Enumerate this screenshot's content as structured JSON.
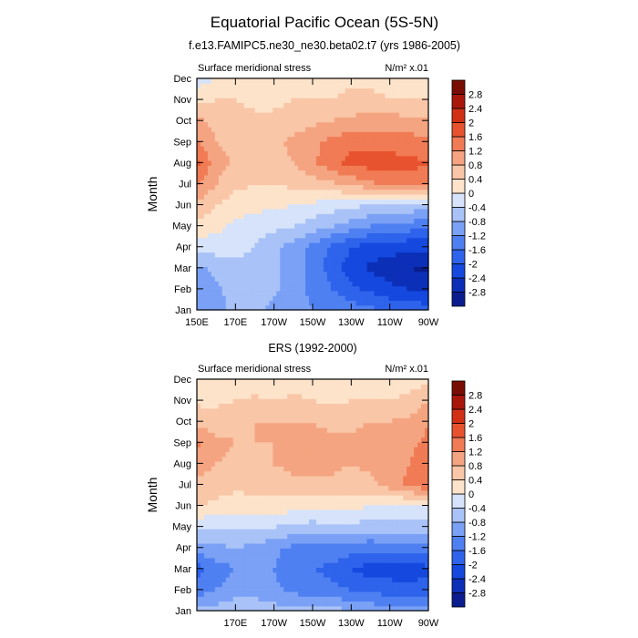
{
  "title": "Equatorial Pacific Ocean (5S-5N)",
  "chart_data": [
    {
      "type": "heatmap",
      "subtitle": "f.e13.FAMIPC5.ne30_ne30.beta02.t7 (yrs 1986-2005)",
      "left_label": "Surface meridional stress",
      "units_label": "N/m² x.01",
      "ylabel": "Month",
      "x_tick_labels": [
        "150E",
        "170E",
        "170W",
        "150W",
        "130W",
        "110W",
        "90W"
      ],
      "y_tick_labels": [
        "Jan",
        "Feb",
        "Mar",
        "Apr",
        "May",
        "Jun",
        "Jul",
        "Aug",
        "Sep",
        "Oct",
        "Nov",
        "Dec"
      ],
      "x_lon": [
        150,
        160,
        170,
        180,
        190,
        200,
        210,
        220,
        230,
        240,
        250,
        260,
        270
      ],
      "rows": [
        [
          -1.2,
          -1.0,
          -0.6,
          -0.6,
          -1.0,
          -1.1,
          -1.2,
          -1.3,
          -1.4,
          -1.5,
          -1.6,
          -1.7,
          -1.8
        ],
        [
          -1.0,
          -0.9,
          -0.6,
          -0.5,
          -0.7,
          -1.0,
          -1.3,
          -1.6,
          -1.9,
          -2.1,
          -2.3,
          -2.4,
          -2.5
        ],
        [
          -0.9,
          -0.7,
          -0.6,
          -0.6,
          -0.7,
          -1.0,
          -1.3,
          -1.8,
          -2.2,
          -2.5,
          -2.6,
          -2.8,
          -2.9
        ],
        [
          -0.3,
          -0.2,
          -0.2,
          -0.4,
          -0.7,
          -1.0,
          -1.3,
          -1.7,
          -2.0,
          -2.2,
          -2.2,
          -2.3,
          -2.3
        ],
        [
          0.3,
          0.1,
          -0.1,
          -0.2,
          -0.3,
          -0.4,
          -0.6,
          -0.8,
          -1.0,
          -1.2,
          -1.3,
          -1.4,
          -1.5
        ],
        [
          0.7,
          0.4,
          0.2,
          0.1,
          0.1,
          0.0,
          -0.1,
          -0.2,
          -0.3,
          -0.4,
          -0.4,
          -0.5,
          -0.6
        ],
        [
          1.3,
          0.8,
          0.5,
          0.4,
          0.4,
          0.5,
          0.6,
          0.7,
          0.9,
          1.1,
          1.3,
          1.4,
          1.4
        ],
        [
          1.7,
          1.0,
          0.7,
          0.6,
          0.7,
          0.8,
          1.1,
          1.5,
          1.7,
          1.8,
          1.8,
          1.7,
          1.6
        ],
        [
          1.2,
          0.8,
          0.7,
          0.6,
          0.7,
          0.9,
          1.1,
          1.3,
          1.5,
          1.5,
          1.4,
          1.4,
          1.3
        ],
        [
          0.9,
          0.7,
          0.6,
          0.5,
          0.5,
          0.6,
          0.7,
          0.8,
          0.9,
          1.0,
          1.0,
          0.9,
          0.9
        ],
        [
          0.3,
          0.4,
          0.4,
          0.3,
          0.3,
          0.4,
          0.4,
          0.4,
          0.5,
          0.5,
          0.4,
          0.4,
          0.4
        ],
        [
          -0.2,
          0.0,
          0.1,
          0.2,
          0.3,
          0.3,
          0.3,
          0.3,
          0.3,
          0.3,
          0.3,
          0.3,
          0.4
        ]
      ]
    },
    {
      "type": "heatmap",
      "subtitle": "ERS (1992-2000)",
      "left_label": "Surface meridional stress",
      "units_label": "N/m² x.01",
      "ylabel": "Month",
      "x_tick_labels": [
        "170E",
        "170W",
        "150W",
        "130W",
        "110W",
        "90W"
      ],
      "y_tick_labels": [
        "Jan",
        "Feb",
        "Mar",
        "Apr",
        "May",
        "Jun",
        "Jul",
        "Aug",
        "Sep",
        "Oct",
        "Nov",
        "Dec"
      ],
      "x_lon": [
        150,
        160,
        170,
        180,
        190,
        200,
        210,
        220,
        230,
        240,
        250,
        260,
        270
      ],
      "rows": [
        [
          -0.7,
          -0.6,
          -0.5,
          -0.5,
          -0.6,
          -0.7,
          -0.7,
          -0.6,
          -0.8,
          -0.9,
          -1.0,
          -0.9,
          -0.9
        ],
        [
          -1.4,
          -1.2,
          -1.0,
          -1.0,
          -1.1,
          -1.3,
          -1.4,
          -1.5,
          -1.6,
          -1.7,
          -1.8,
          -1.8,
          -1.8
        ],
        [
          -1.8,
          -1.4,
          -1.2,
          -1.1,
          -1.2,
          -1.5,
          -1.6,
          -1.7,
          -2.0,
          -2.2,
          -2.2,
          -2.3,
          -2.1
        ],
        [
          -1.0,
          -0.9,
          -0.8,
          -0.9,
          -1.1,
          -1.3,
          -1.4,
          -1.3,
          -1.4,
          -1.5,
          -1.4,
          -1.4,
          -1.3
        ],
        [
          -0.3,
          -0.4,
          -0.3,
          -0.3,
          -0.4,
          -0.5,
          -0.6,
          -0.5,
          -0.5,
          -0.6,
          -0.6,
          -0.6,
          -0.6
        ],
        [
          0.4,
          0.3,
          0.2,
          0.3,
          0.2,
          0.2,
          0.2,
          0.2,
          0.1,
          0.0,
          -0.1,
          -0.1,
          0.0
        ],
        [
          0.7,
          0.6,
          0.5,
          0.5,
          0.6,
          0.7,
          0.7,
          0.7,
          0.6,
          0.7,
          1.0,
          1.3,
          1.5
        ],
        [
          1.0,
          0.8,
          0.7,
          0.7,
          0.8,
          0.9,
          0.9,
          0.9,
          0.8,
          0.9,
          1.0,
          1.2,
          1.4
        ],
        [
          1.3,
          0.9,
          0.8,
          0.8,
          0.8,
          0.9,
          0.9,
          0.9,
          0.9,
          1.0,
          1.0,
          1.1,
          1.3
        ],
        [
          0.7,
          0.6,
          0.7,
          0.8,
          0.8,
          0.8,
          0.8,
          0.7,
          0.7,
          0.8,
          0.8,
          0.9,
          1.2
        ],
        [
          0.3,
          0.3,
          0.4,
          0.5,
          0.4,
          0.5,
          0.4,
          0.3,
          0.4,
          0.4,
          0.4,
          0.5,
          0.8
        ],
        [
          0.0,
          0.0,
          0.1,
          0.1,
          0.1,
          0.2,
          0.1,
          0.1,
          0.1,
          0.1,
          0.2,
          0.2,
          0.3
        ]
      ]
    }
  ],
  "colorbar": {
    "labels": [
      "2.8",
      "2.4",
      "2",
      "1.6",
      "1.2",
      "0.8",
      "0.4",
      "0",
      "-0.4",
      "-0.8",
      "-1.2",
      "-1.6",
      "-2",
      "-2.4",
      "-2.8"
    ],
    "levels": [
      -2.8,
      -2.4,
      -2,
      -1.6,
      -1.2,
      -0.8,
      -0.4,
      0,
      0.4,
      0.8,
      1.2,
      1.6,
      2,
      2.4,
      2.8
    ],
    "colors": [
      "#0b1d8e",
      "#0c2fb8",
      "#1448df",
      "#2e63ec",
      "#4f80f2",
      "#7aa1f6",
      "#a9c2f7",
      "#d6e3fa",
      "#fde3c9",
      "#f9c6a7",
      "#f5a481",
      "#f07b54",
      "#e8532f",
      "#d13015",
      "#a8170a",
      "#7a0d03"
    ]
  }
}
